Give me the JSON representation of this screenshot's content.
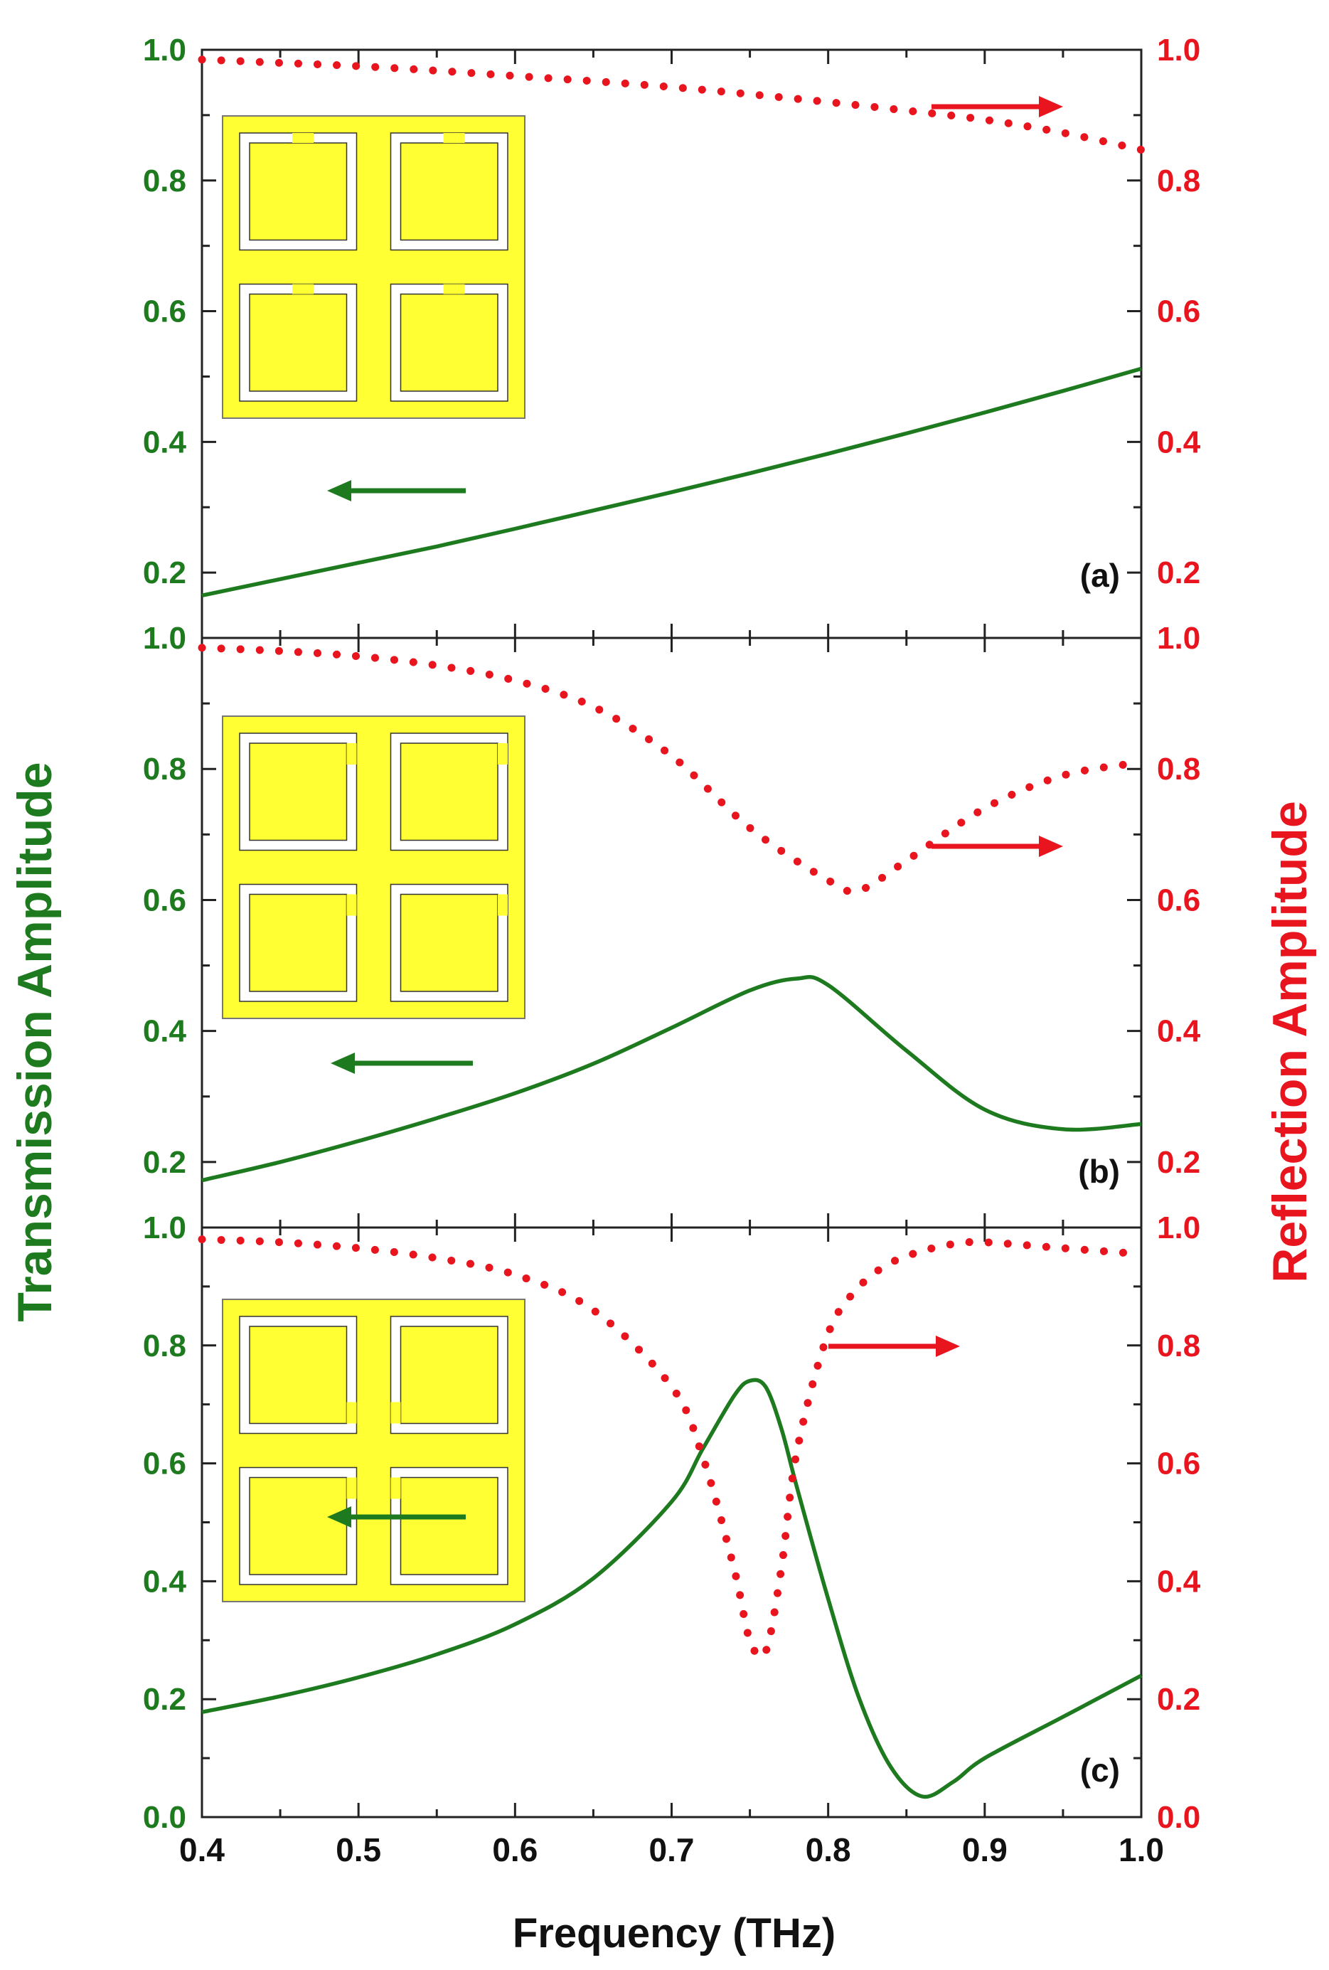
{
  "chart_data": {
    "type": "line",
    "title": "",
    "xlabel": "Frequency (THz)",
    "ylabel_left": "Transmission Amplitude",
    "ylabel_right": "Reflection Amplitude",
    "xlim": [
      0.4,
      1.0
    ],
    "x_ticks": [
      "0.4",
      "0.5",
      "0.6",
      "0.7",
      "0.8",
      "0.9",
      "1.0"
    ],
    "colors": {
      "transmission": "#1e7a1e",
      "reflection": "#e8141e",
      "inset_fill": "#ffff33",
      "inset_gap": "#ffffff"
    },
    "panels": [
      {
        "label": "(a)",
        "ylim": [
          0.1,
          1.0
        ],
        "y_ticks_left": [
          "0.2",
          "0.4",
          "0.6",
          "0.8",
          "1.0"
        ],
        "y_ticks_right": [
          "0.2",
          "0.4",
          "0.6",
          "0.8",
          "1.0"
        ],
        "series": [
          {
            "name": "Transmission",
            "axis": "left",
            "style": "solid",
            "x": [
              0.4,
              0.45,
              0.5,
              0.55,
              0.6,
              0.65,
              0.7,
              0.75,
              0.8,
              0.85,
              0.9,
              0.95,
              1.0
            ],
            "y": [
              0.165,
              0.19,
              0.215,
              0.24,
              0.267,
              0.295,
              0.323,
              0.352,
              0.382,
              0.413,
              0.445,
              0.478,
              0.512
            ]
          },
          {
            "name": "Reflection",
            "axis": "right",
            "style": "dotted",
            "x": [
              0.4,
              0.45,
              0.5,
              0.55,
              0.6,
              0.65,
              0.7,
              0.75,
              0.8,
              0.85,
              0.9,
              0.95,
              1.0
            ],
            "y": [
              0.985,
              0.98,
              0.975,
              0.968,
              0.96,
              0.952,
              0.943,
              0.932,
              0.92,
              0.907,
              0.893,
              0.873,
              0.847
            ]
          }
        ]
      },
      {
        "label": "(b)",
        "ylim": [
          0.1,
          1.0
        ],
        "y_ticks_left": [
          "0.2",
          "0.4",
          "0.6",
          "0.8",
          "1.0"
        ],
        "y_ticks_right": [
          "0.2",
          "0.4",
          "0.6",
          "0.8",
          "1.0"
        ],
        "series": [
          {
            "name": "Transmission",
            "axis": "left",
            "style": "solid",
            "x": [
              0.4,
              0.45,
              0.5,
              0.55,
              0.6,
              0.65,
              0.7,
              0.75,
              0.78,
              0.8,
              0.85,
              0.9,
              0.95,
              1.0
            ],
            "y": [
              0.172,
              0.2,
              0.232,
              0.267,
              0.305,
              0.35,
              0.405,
              0.462,
              0.48,
              0.47,
              0.37,
              0.28,
              0.25,
              0.258
            ]
          },
          {
            "name": "Reflection",
            "axis": "right",
            "style": "dotted",
            "x": [
              0.4,
              0.45,
              0.5,
              0.55,
              0.6,
              0.65,
              0.7,
              0.75,
              0.8,
              0.82,
              0.85,
              0.9,
              0.95,
              1.0
            ],
            "y": [
              0.985,
              0.98,
              0.972,
              0.958,
              0.935,
              0.895,
              0.82,
              0.71,
              0.63,
              0.615,
              0.66,
              0.74,
              0.79,
              0.81
            ]
          }
        ]
      },
      {
        "label": "(c)",
        "ylim": [
          0.0,
          1.0
        ],
        "y_ticks_left": [
          "0.0",
          "0.2",
          "0.4",
          "0.6",
          "0.8",
          "1.0"
        ],
        "y_ticks_right": [
          "0.0",
          "0.2",
          "0.4",
          "0.6",
          "0.8",
          "1.0"
        ],
        "series": [
          {
            "name": "Transmission",
            "axis": "left",
            "style": "solid",
            "x": [
              0.4,
              0.45,
              0.5,
              0.55,
              0.6,
              0.65,
              0.7,
              0.72,
              0.74,
              0.75,
              0.76,
              0.77,
              0.78,
              0.8,
              0.82,
              0.84,
              0.86,
              0.88,
              0.9,
              0.95,
              1.0
            ],
            "y": [
              0.178,
              0.205,
              0.237,
              0.276,
              0.327,
              0.405,
              0.535,
              0.625,
              0.715,
              0.74,
              0.73,
              0.66,
              0.56,
              0.37,
              0.2,
              0.085,
              0.035,
              0.06,
              0.1,
              0.17,
              0.24
            ]
          },
          {
            "name": "Reflection",
            "axis": "right",
            "style": "dotted",
            "x": [
              0.4,
              0.45,
              0.5,
              0.55,
              0.6,
              0.65,
              0.7,
              0.72,
              0.74,
              0.75,
              0.76,
              0.77,
              0.78,
              0.8,
              0.82,
              0.84,
              0.86,
              0.88,
              0.9,
              0.95,
              1.0
            ],
            "y": [
              0.98,
              0.975,
              0.965,
              0.948,
              0.92,
              0.86,
              0.73,
              0.61,
              0.42,
              0.3,
              0.28,
              0.42,
              0.62,
              0.82,
              0.9,
              0.94,
              0.96,
              0.972,
              0.975,
              0.965,
              0.955
            ]
          }
        ]
      }
    ]
  }
}
